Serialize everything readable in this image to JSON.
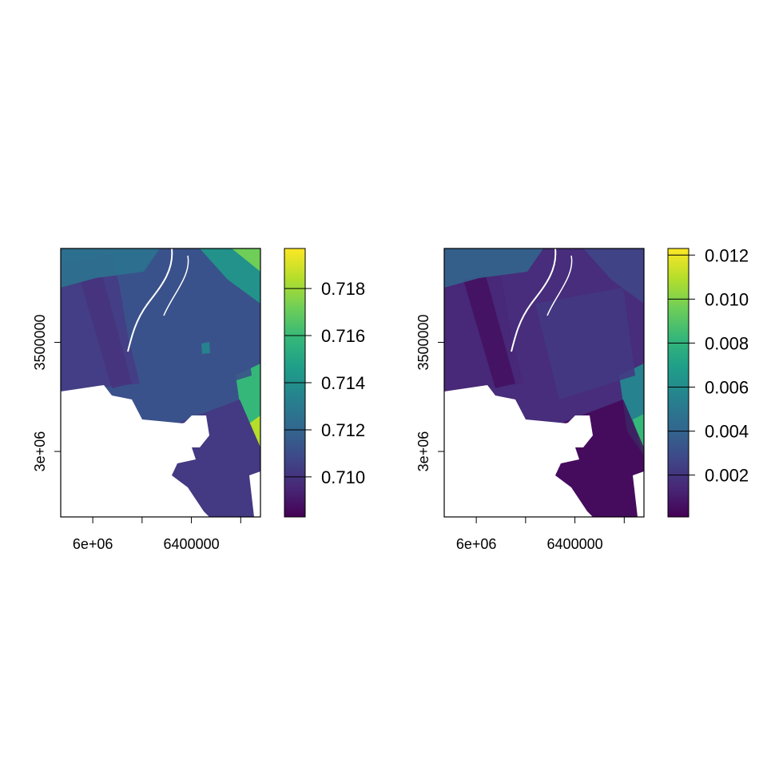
{
  "chart_data": [
    {
      "type": "heatmap",
      "title": "",
      "xlabel": "",
      "ylabel": "",
      "x_ticks": [
        {
          "value": 6000000,
          "label": "6e+06"
        },
        {
          "value": 6200000,
          "label": ""
        },
        {
          "value": 6400000,
          "label": "6400000"
        },
        {
          "value": 6600000,
          "label": ""
        }
      ],
      "y_ticks": [
        {
          "value": 3000000,
          "label": "3e+06"
        },
        {
          "value": 3500000,
          "label": "3500000"
        }
      ],
      "xlim": [
        5870000,
        6680000
      ],
      "ylim": [
        2700000,
        3930000
      ],
      "colorbar": {
        "range": [
          0.7083,
          0.7197
        ],
        "ticks": [
          {
            "value": 0.71,
            "label": "0.710"
          },
          {
            "value": 0.712,
            "label": "0.712"
          },
          {
            "value": 0.714,
            "label": "0.714"
          },
          {
            "value": 0.716,
            "label": "0.716"
          },
          {
            "value": 0.718,
            "label": "0.718"
          }
        ],
        "palette": [
          "#440154",
          "#482878",
          "#3e4989",
          "#31688e",
          "#26828e",
          "#1f9e89",
          "#35b779",
          "#6ece58",
          "#b5de2b",
          "#fde725"
        ]
      }
    },
    {
      "type": "heatmap",
      "title": "",
      "xlabel": "",
      "ylabel": "",
      "x_ticks": [
        {
          "value": 6000000,
          "label": "6e+06"
        },
        {
          "value": 6200000,
          "label": ""
        },
        {
          "value": 6400000,
          "label": "6400000"
        },
        {
          "value": 6600000,
          "label": ""
        }
      ],
      "y_ticks": [
        {
          "value": 3000000,
          "label": "3e+06"
        },
        {
          "value": 3500000,
          "label": "3500000"
        }
      ],
      "xlim": [
        5870000,
        6680000
      ],
      "ylim": [
        2700000,
        3930000
      ],
      "colorbar": {
        "range": [
          0.0001,
          0.0123
        ],
        "ticks": [
          {
            "value": 0.002,
            "label": "0.002"
          },
          {
            "value": 0.004,
            "label": "0.004"
          },
          {
            "value": 0.006,
            "label": "0.006"
          },
          {
            "value": 0.008,
            "label": "0.008"
          },
          {
            "value": 0.01,
            "label": "0.010"
          },
          {
            "value": 0.012,
            "label": "0.012"
          }
        ],
        "palette": [
          "#440154",
          "#482878",
          "#3e4989",
          "#31688e",
          "#26828e",
          "#1f9e89",
          "#35b779",
          "#6ece58",
          "#b5de2b",
          "#fde725"
        ]
      }
    }
  ]
}
